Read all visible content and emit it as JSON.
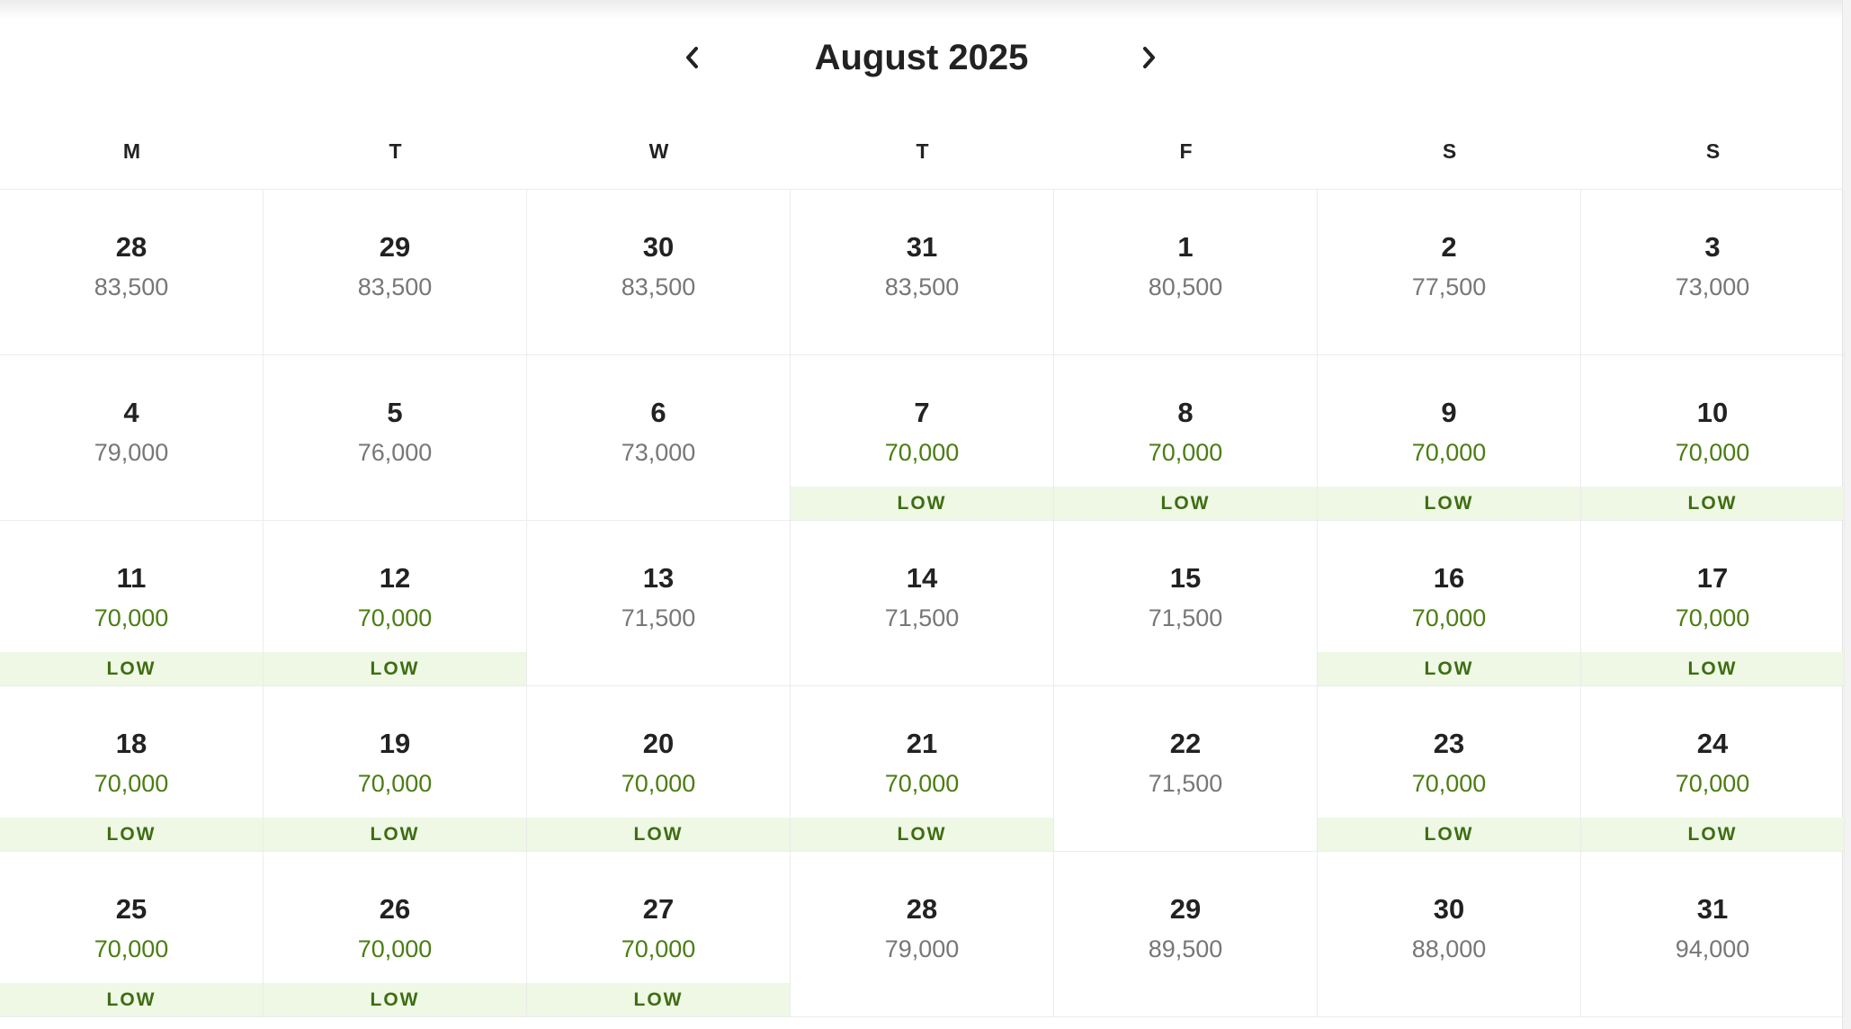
{
  "header": {
    "title": "August 2025"
  },
  "weekdays": [
    "M",
    "T",
    "W",
    "T",
    "F",
    "S",
    "S"
  ],
  "weeks": [
    [
      {
        "day": "28",
        "price": "83,500"
      },
      {
        "day": "29",
        "price": "83,500"
      },
      {
        "day": "30",
        "price": "83,500"
      },
      {
        "day": "31",
        "price": "83,500"
      },
      {
        "day": "1",
        "price": "80,500"
      },
      {
        "day": "2",
        "price": "77,500"
      },
      {
        "day": "3",
        "price": "73,000"
      }
    ],
    [
      {
        "day": "4",
        "price": "79,000"
      },
      {
        "day": "5",
        "price": "76,000"
      },
      {
        "day": "6",
        "price": "73,000"
      },
      {
        "day": "7",
        "price": "70,000",
        "tag": "LOW"
      },
      {
        "day": "8",
        "price": "70,000",
        "tag": "LOW"
      },
      {
        "day": "9",
        "price": "70,000",
        "tag": "LOW"
      },
      {
        "day": "10",
        "price": "70,000",
        "tag": "LOW"
      }
    ],
    [
      {
        "day": "11",
        "price": "70,000",
        "tag": "LOW"
      },
      {
        "day": "12",
        "price": "70,000",
        "tag": "LOW"
      },
      {
        "day": "13",
        "price": "71,500"
      },
      {
        "day": "14",
        "price": "71,500"
      },
      {
        "day": "15",
        "price": "71,500"
      },
      {
        "day": "16",
        "price": "70,000",
        "tag": "LOW"
      },
      {
        "day": "17",
        "price": "70,000",
        "tag": "LOW"
      }
    ],
    [
      {
        "day": "18",
        "price": "70,000",
        "tag": "LOW"
      },
      {
        "day": "19",
        "price": "70,000",
        "tag": "LOW"
      },
      {
        "day": "20",
        "price": "70,000",
        "tag": "LOW"
      },
      {
        "day": "21",
        "price": "70,000",
        "tag": "LOW"
      },
      {
        "day": "22",
        "price": "71,500"
      },
      {
        "day": "23",
        "price": "70,000",
        "tag": "LOW"
      },
      {
        "day": "24",
        "price": "70,000",
        "tag": "LOW"
      }
    ],
    [
      {
        "day": "25",
        "price": "70,000",
        "tag": "LOW"
      },
      {
        "day": "26",
        "price": "70,000",
        "tag": "LOW"
      },
      {
        "day": "27",
        "price": "70,000",
        "tag": "LOW"
      },
      {
        "day": "28",
        "price": "79,000"
      },
      {
        "day": "29",
        "price": "89,500"
      },
      {
        "day": "30",
        "price": "88,000"
      },
      {
        "day": "31",
        "price": "94,000"
      }
    ]
  ]
}
